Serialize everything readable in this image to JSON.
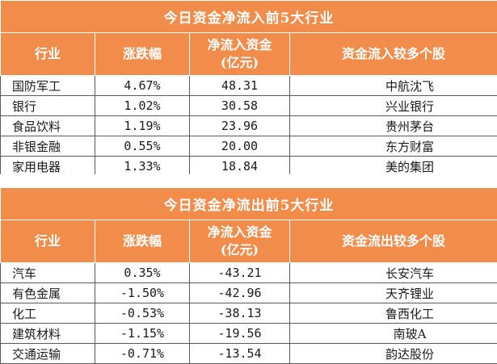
{
  "inflow": {
    "title": "今日资金净流入前5大行业",
    "headers": [
      "行业",
      "涨跌幅",
      "净流入资金\n(亿元)",
      "资金流入较多个股"
    ],
    "rows": [
      {
        "industry": "国防军工",
        "change": "4.67%",
        "net": "48.31",
        "stock": "中航沈飞"
      },
      {
        "industry": "银行",
        "change": "1.02%",
        "net": "30.58",
        "stock": "兴业银行"
      },
      {
        "industry": "食品饮料",
        "change": "1.19%",
        "net": "23.96",
        "stock": "贵州茅台"
      },
      {
        "industry": "非银金融",
        "change": "0.55%",
        "net": "20.00",
        "stock": "东方财富"
      },
      {
        "industry": "家用电器",
        "change": "1.33%",
        "net": "18.84",
        "stock": "美的集团"
      }
    ]
  },
  "outflow": {
    "title": "今日资金净流出前5大行业",
    "headers": [
      "行业",
      "涨跌幅",
      "净流入资金\n(亿元)",
      "资金流出较多个股"
    ],
    "rows": [
      {
        "industry": "汽车",
        "change": "0.35%",
        "net": "-43.21",
        "stock": "长安汽车"
      },
      {
        "industry": "有色金属",
        "change": "-1.50%",
        "net": "-42.96",
        "stock": "天齐锂业"
      },
      {
        "industry": "化工",
        "change": "-0.53%",
        "net": "-38.13",
        "stock": "鲁西化工"
      },
      {
        "industry": "建筑材料",
        "change": "-1.15%",
        "net": "-19.56",
        "stock": "南玻A"
      },
      {
        "industry": "交通运输",
        "change": "-0.71%",
        "net": "-13.54",
        "stock": "韵达股份"
      }
    ]
  },
  "colors": {
    "header_bg": "#f28c4a",
    "header_text": "#ffffff",
    "border": "#5b5b5b"
  }
}
